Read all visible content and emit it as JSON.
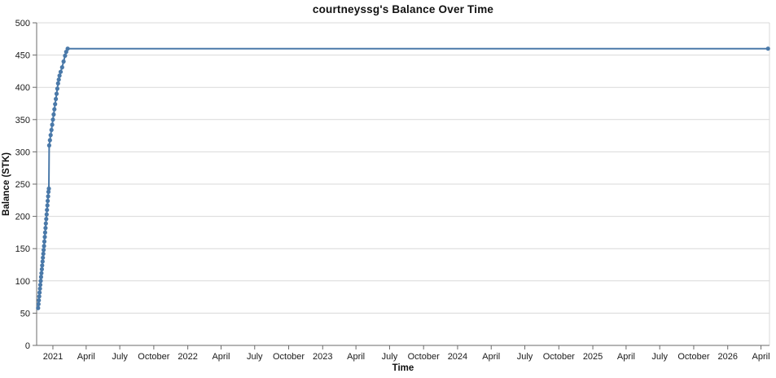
{
  "title": "courtneyssg's Balance Over Time",
  "colors": {
    "line": "#4a79a9",
    "marker": "#4a79a9",
    "grid": "#d9d9d9",
    "axis": "#6b6b6b",
    "text": "#1a1a1a"
  },
  "chart_data": {
    "type": "line",
    "title": "courtneyssg's Balance Over Time",
    "xlabel": "Time",
    "ylabel": "Balance (STK)",
    "ylim": [
      0,
      500
    ],
    "y_tick_step": 50,
    "y_ticks": [
      0,
      50,
      100,
      150,
      200,
      250,
      300,
      350,
      400,
      450,
      500
    ],
    "x_domain": [
      "2020-11-18",
      "2026-04-24"
    ],
    "grid": "horizontal",
    "legend": "none",
    "x_ticks": [
      {
        "date": "2021-01-01",
        "label": "2021"
      },
      {
        "date": "2021-04-01",
        "label": "April"
      },
      {
        "date": "2021-07-01",
        "label": "July"
      },
      {
        "date": "2021-10-01",
        "label": "October"
      },
      {
        "date": "2022-01-01",
        "label": "2022"
      },
      {
        "date": "2022-04-01",
        "label": "April"
      },
      {
        "date": "2022-07-01",
        "label": "July"
      },
      {
        "date": "2022-10-01",
        "label": "October"
      },
      {
        "date": "2023-01-01",
        "label": "2023"
      },
      {
        "date": "2023-04-01",
        "label": "April"
      },
      {
        "date": "2023-07-01",
        "label": "July"
      },
      {
        "date": "2023-10-01",
        "label": "October"
      },
      {
        "date": "2024-01-01",
        "label": "2024"
      },
      {
        "date": "2024-04-01",
        "label": "April"
      },
      {
        "date": "2024-07-01",
        "label": "July"
      },
      {
        "date": "2024-10-01",
        "label": "October"
      },
      {
        "date": "2025-01-01",
        "label": "2025"
      },
      {
        "date": "2025-04-01",
        "label": "April"
      },
      {
        "date": "2025-07-01",
        "label": "July"
      },
      {
        "date": "2025-10-01",
        "label": "October"
      },
      {
        "date": "2026-01-01",
        "label": "2026"
      },
      {
        "date": "2026-04-01",
        "label": "April"
      }
    ],
    "series": [
      {
        "name": "Balance",
        "points": [
          {
            "date": "2020-11-22",
            "value": 58
          },
          {
            "date": "2020-11-23",
            "value": 64
          },
          {
            "date": "2020-11-24",
            "value": 70
          },
          {
            "date": "2020-11-25",
            "value": 76
          },
          {
            "date": "2020-11-26",
            "value": 82
          },
          {
            "date": "2020-11-27",
            "value": 88
          },
          {
            "date": "2020-11-28",
            "value": 94
          },
          {
            "date": "2020-11-29",
            "value": 100
          },
          {
            "date": "2020-11-30",
            "value": 106
          },
          {
            "date": "2020-12-01",
            "value": 112
          },
          {
            "date": "2020-12-02",
            "value": 118
          },
          {
            "date": "2020-12-03",
            "value": 124
          },
          {
            "date": "2020-12-04",
            "value": 130
          },
          {
            "date": "2020-12-05",
            "value": 136
          },
          {
            "date": "2020-12-06",
            "value": 142
          },
          {
            "date": "2020-12-07",
            "value": 148
          },
          {
            "date": "2020-12-08",
            "value": 154
          },
          {
            "date": "2020-12-09",
            "value": 161
          },
          {
            "date": "2020-12-10",
            "value": 168
          },
          {
            "date": "2020-12-11",
            "value": 175
          },
          {
            "date": "2020-12-12",
            "value": 182
          },
          {
            "date": "2020-12-13",
            "value": 189
          },
          {
            "date": "2020-12-14",
            "value": 196
          },
          {
            "date": "2020-12-15",
            "value": 203
          },
          {
            "date": "2020-12-16",
            "value": 210
          },
          {
            "date": "2020-12-17",
            "value": 217
          },
          {
            "date": "2020-12-18",
            "value": 224
          },
          {
            "date": "2020-12-19",
            "value": 231
          },
          {
            "date": "2020-12-20",
            "value": 238
          },
          {
            "date": "2020-12-21",
            "value": 243
          },
          {
            "date": "2020-12-22",
            "value": 310
          },
          {
            "date": "2020-12-24",
            "value": 318
          },
          {
            "date": "2020-12-26",
            "value": 326
          },
          {
            "date": "2020-12-28",
            "value": 334
          },
          {
            "date": "2020-12-30",
            "value": 342
          },
          {
            "date": "2021-01-01",
            "value": 350
          },
          {
            "date": "2021-01-03",
            "value": 358
          },
          {
            "date": "2021-01-05",
            "value": 366
          },
          {
            "date": "2021-01-07",
            "value": 374
          },
          {
            "date": "2021-01-09",
            "value": 382
          },
          {
            "date": "2021-01-11",
            "value": 390
          },
          {
            "date": "2021-01-13",
            "value": 398
          },
          {
            "date": "2021-01-15",
            "value": 406
          },
          {
            "date": "2021-01-17",
            "value": 412
          },
          {
            "date": "2021-01-19",
            "value": 418
          },
          {
            "date": "2021-01-22",
            "value": 424
          },
          {
            "date": "2021-01-26",
            "value": 431
          },
          {
            "date": "2021-01-30",
            "value": 440
          },
          {
            "date": "2021-02-03",
            "value": 449
          },
          {
            "date": "2021-02-06",
            "value": 455
          },
          {
            "date": "2021-02-10",
            "value": 460
          },
          {
            "date": "2026-04-20",
            "value": 460
          }
        ]
      }
    ]
  }
}
